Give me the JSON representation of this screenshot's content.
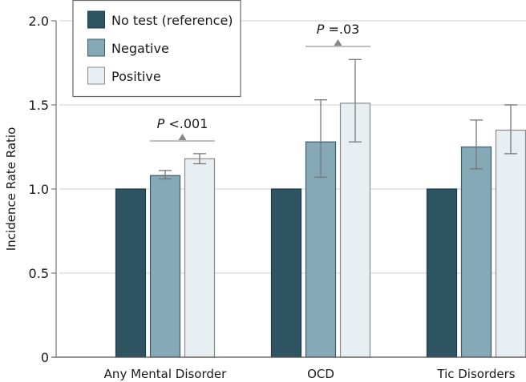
{
  "chart_data": {
    "type": "bar",
    "title": "",
    "xlabel": "",
    "ylabel": "Incidence Rate Ratio",
    "ylim": [
      0,
      2.0
    ],
    "yticks": [
      0,
      0.5,
      1.0,
      1.5,
      2.0
    ],
    "ytick_labels": [
      "0",
      "0.5",
      "1.0",
      "1.5",
      "2.0"
    ],
    "grid": true,
    "categories": [
      "Any Mental Disorder",
      "OCD",
      "Tic Disorders"
    ],
    "series": [
      {
        "name": "No test (reference)",
        "color": "#2f5461",
        "values": [
          1.0,
          1.0,
          1.0
        ],
        "ci_low": [
          null,
          null,
          null
        ],
        "ci_high": [
          null,
          null,
          null
        ]
      },
      {
        "name": "Negative",
        "color": "#86a9b7",
        "values": [
          1.08,
          1.28,
          1.25
        ],
        "ci_low": [
          1.06,
          1.07,
          1.12
        ],
        "ci_high": [
          1.11,
          1.53,
          1.41
        ]
      },
      {
        "name": "Positive",
        "color": "#e8eff2",
        "values": [
          1.18,
          1.51,
          1.35
        ],
        "ci_low": [
          1.15,
          1.28,
          1.21
        ],
        "ci_high": [
          1.21,
          1.77,
          1.5
        ]
      }
    ],
    "annotations": [
      {
        "category": "Any Mental Disorder",
        "text_italic": "P",
        "text": " <.001"
      },
      {
        "category": "OCD",
        "text_italic": "P",
        "text": " =.03"
      }
    ],
    "legend": {
      "placement": "top-left",
      "entries": [
        "No test (reference)",
        "Negative",
        "Positive"
      ]
    }
  }
}
